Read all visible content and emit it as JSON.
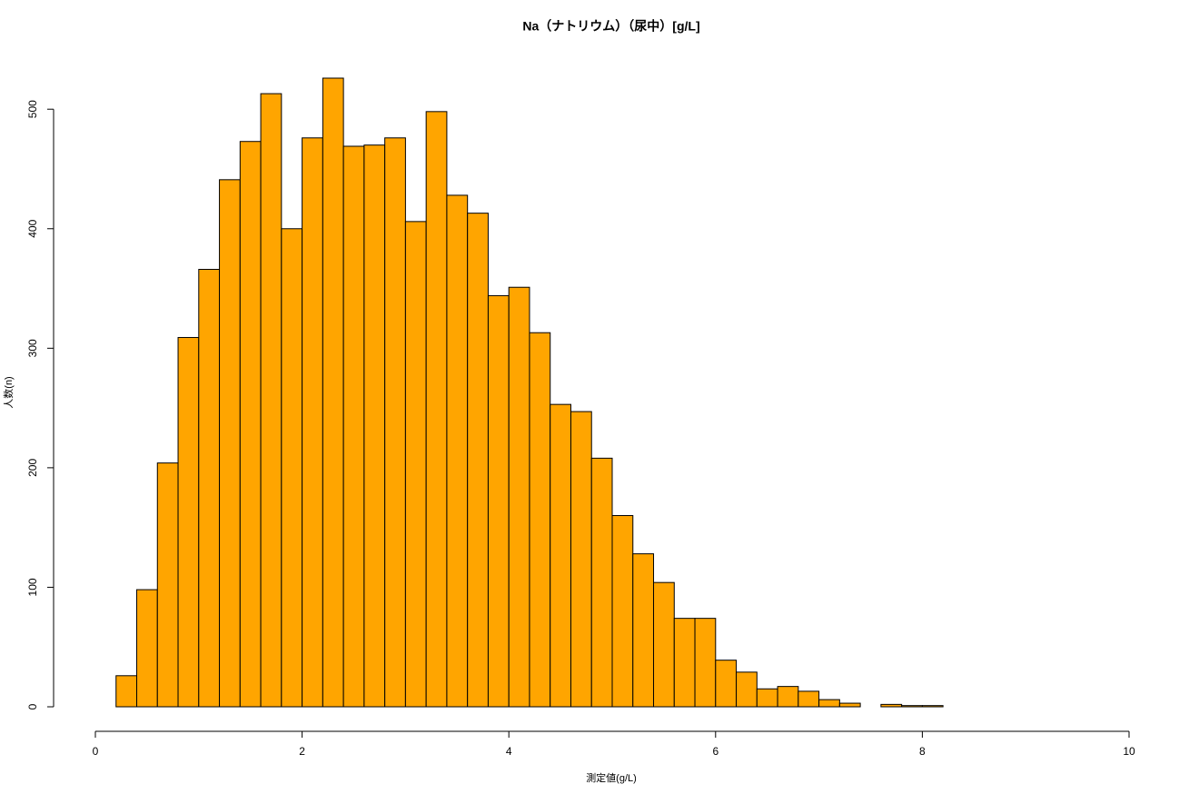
{
  "chart_data": {
    "type": "histogram",
    "title": "Na（ナトリウム）（尿中）[g/L]",
    "x_label": "測定値(g/L)",
    "y_label": "人数(n)",
    "bins": [
      0.2,
      0.4,
      0.6,
      0.8,
      1.0,
      1.2,
      1.4,
      1.6,
      1.8,
      2.0,
      2.2,
      2.4,
      2.6,
      2.8,
      3.0,
      3.2,
      3.4,
      3.6,
      3.8,
      4.0,
      4.2,
      4.4,
      4.6,
      4.8,
      5.0,
      5.2,
      5.4,
      5.6,
      5.8,
      6.0,
      6.2,
      6.4,
      6.6,
      6.8,
      7.0,
      7.2,
      7.4,
      7.6,
      7.8,
      8.0,
      8.2
    ],
    "values": [
      26,
      98,
      204,
      309,
      366,
      441,
      473,
      513,
      400,
      476,
      526,
      469,
      470,
      476,
      406,
      498,
      428,
      413,
      344,
      351,
      313,
      253,
      247,
      208,
      160,
      128,
      104,
      74,
      74,
      39,
      29,
      15,
      17,
      13,
      6,
      3,
      0,
      2,
      1,
      1
    ],
    "color": "#ffa500",
    "xlim": [
      0,
      10
    ],
    "xticks": [
      0,
      2,
      4,
      6,
      8,
      10
    ],
    "ylim": [
      0,
      526
    ],
    "yticks": [
      0,
      100,
      200,
      300,
      400,
      500
    ]
  }
}
